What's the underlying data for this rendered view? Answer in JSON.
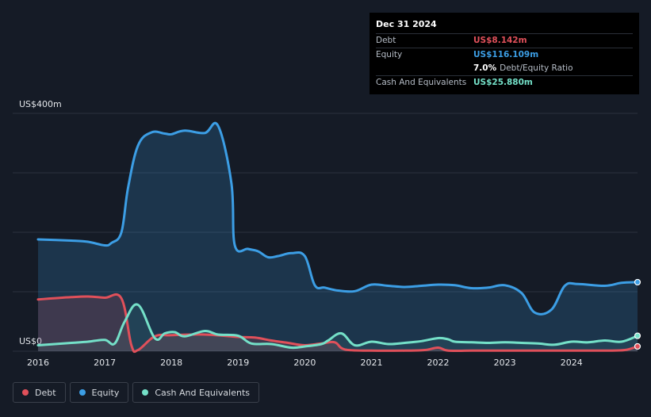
{
  "tooltip": {
    "date": "Dec 31 2024",
    "rows": [
      {
        "label": "Debt",
        "value": "US$8.142m",
        "color": "#e0505a"
      },
      {
        "label": "Equity",
        "value": "US$116.109m",
        "color": "#3c9ee5"
      },
      {
        "ratio": "7.0%",
        "ratio_label": "Debt/Equity Ratio"
      },
      {
        "label": "Cash And Equivalents",
        "value": "US$25.880m",
        "color": "#74e0c8"
      }
    ]
  },
  "legend": [
    {
      "label": "Debt",
      "color": "#e0505a"
    },
    {
      "label": "Equity",
      "color": "#3c9ee5"
    },
    {
      "label": "Cash And Equivalents",
      "color": "#74e0c8"
    }
  ],
  "chart_data": {
    "type": "area",
    "y_top_label": "US$400m",
    "y_bottom_label": "US$0",
    "ylim": [
      0,
      400
    ],
    "x_range": [
      2016.0,
      2024.99
    ],
    "x_ticks": [
      "2016",
      "2017",
      "2018",
      "2019",
      "2020",
      "2021",
      "2022",
      "2023",
      "2024"
    ],
    "grid": true,
    "series": [
      {
        "name": "Equity",
        "color": "#3c9ee5",
        "points": [
          [
            2016.0,
            188
          ],
          [
            2016.5,
            186
          ],
          [
            2016.75,
            184
          ],
          [
            2017.0,
            178
          ],
          [
            2017.1,
            182
          ],
          [
            2017.25,
            200
          ],
          [
            2017.35,
            275
          ],
          [
            2017.5,
            346
          ],
          [
            2017.7,
            368
          ],
          [
            2017.9,
            366
          ],
          [
            2018.0,
            365
          ],
          [
            2018.2,
            371
          ],
          [
            2018.5,
            367
          ],
          [
            2018.7,
            379
          ],
          [
            2018.9,
            282
          ],
          [
            2018.95,
            178
          ],
          [
            2019.15,
            172
          ],
          [
            2019.3,
            168
          ],
          [
            2019.45,
            158
          ],
          [
            2019.6,
            160
          ],
          [
            2019.8,
            165
          ],
          [
            2020.0,
            160
          ],
          [
            2020.15,
            111
          ],
          [
            2020.3,
            107
          ],
          [
            2020.5,
            102
          ],
          [
            2020.75,
            101
          ],
          [
            2021.0,
            112
          ],
          [
            2021.25,
            110
          ],
          [
            2021.5,
            108
          ],
          [
            2021.75,
            110
          ],
          [
            2022.0,
            112
          ],
          [
            2022.25,
            111
          ],
          [
            2022.5,
            106
          ],
          [
            2022.75,
            107
          ],
          [
            2023.0,
            111
          ],
          [
            2023.25,
            98
          ],
          [
            2023.45,
            65
          ],
          [
            2023.7,
            70
          ],
          [
            2023.9,
            110
          ],
          [
            2024.1,
            113
          ],
          [
            2024.5,
            110
          ],
          [
            2024.75,
            115
          ],
          [
            2024.99,
            116.1
          ]
        ]
      },
      {
        "name": "Debt",
        "color": "#e0505a",
        "points": [
          [
            2016.0,
            87
          ],
          [
            2016.5,
            91
          ],
          [
            2016.75,
            92
          ],
          [
            2017.0,
            90
          ],
          [
            2017.25,
            89
          ],
          [
            2017.4,
            10
          ],
          [
            2017.5,
            2
          ],
          [
            2017.75,
            25
          ],
          [
            2018.0,
            27
          ],
          [
            2018.5,
            28
          ],
          [
            2019.0,
            24
          ],
          [
            2019.25,
            23
          ],
          [
            2019.5,
            18
          ],
          [
            2019.75,
            14
          ],
          [
            2020.0,
            10
          ],
          [
            2020.25,
            13
          ],
          [
            2020.45,
            15
          ],
          [
            2020.6,
            3
          ],
          [
            2021.0,
            1
          ],
          [
            2021.5,
            1
          ],
          [
            2021.8,
            2
          ],
          [
            2022.0,
            6
          ],
          [
            2022.15,
            1
          ],
          [
            2022.5,
            1
          ],
          [
            2023.0,
            1
          ],
          [
            2023.5,
            1
          ],
          [
            2024.0,
            1
          ],
          [
            2024.5,
            1
          ],
          [
            2024.8,
            2
          ],
          [
            2024.99,
            8.1
          ]
        ]
      },
      {
        "name": "Cash And Equivalents",
        "color": "#74e0c8",
        "points": [
          [
            2016.0,
            10
          ],
          [
            2016.5,
            14
          ],
          [
            2016.75,
            16
          ],
          [
            2017.0,
            19
          ],
          [
            2017.15,
            13
          ],
          [
            2017.3,
            50
          ],
          [
            2017.5,
            78
          ],
          [
            2017.75,
            22
          ],
          [
            2017.9,
            30
          ],
          [
            2018.05,
            32
          ],
          [
            2018.2,
            25
          ],
          [
            2018.5,
            34
          ],
          [
            2018.7,
            28
          ],
          [
            2019.0,
            26
          ],
          [
            2019.2,
            13
          ],
          [
            2019.5,
            12
          ],
          [
            2019.8,
            6
          ],
          [
            2020.0,
            8
          ],
          [
            2020.25,
            12
          ],
          [
            2020.35,
            18
          ],
          [
            2020.55,
            30
          ],
          [
            2020.75,
            10
          ],
          [
            2021.0,
            16
          ],
          [
            2021.25,
            12
          ],
          [
            2021.5,
            14
          ],
          [
            2021.75,
            17
          ],
          [
            2022.0,
            22
          ],
          [
            2022.15,
            20
          ],
          [
            2022.25,
            16
          ],
          [
            2022.5,
            15
          ],
          [
            2022.75,
            14
          ],
          [
            2023.0,
            15
          ],
          [
            2023.25,
            14
          ],
          [
            2023.5,
            13
          ],
          [
            2023.75,
            11
          ],
          [
            2024.0,
            16
          ],
          [
            2024.25,
            15
          ],
          [
            2024.5,
            18
          ],
          [
            2024.75,
            16
          ],
          [
            2024.99,
            25.9
          ]
        ]
      }
    ]
  }
}
